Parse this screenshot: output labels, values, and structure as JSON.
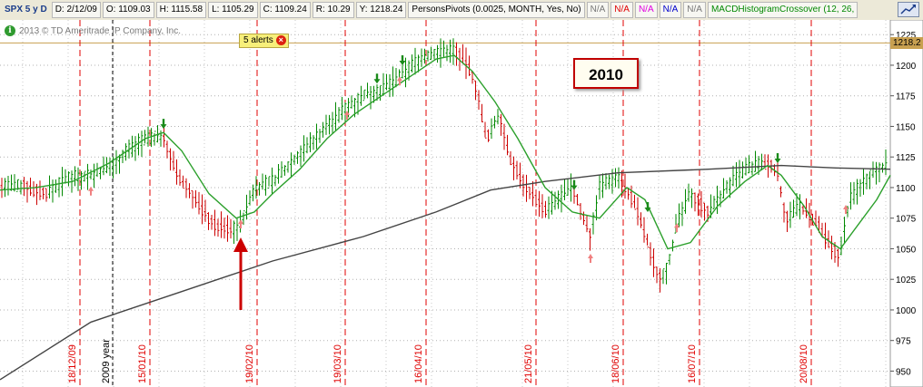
{
  "header": {
    "symbol": "SPX 5 y D",
    "date": "D: 2/12/09",
    "open": "O: 1109.03",
    "high": "H: 1115.58",
    "low": "L: 1105.29",
    "close": "C: 1109.24",
    "range": "R: 10.29",
    "y": "Y: 1218.24",
    "pivots": "PersonsPivots (0.0025, MONTH, Yes, No)",
    "na_labels": [
      "N/A",
      "N/A",
      "N/A",
      "N/A",
      "N/A"
    ],
    "macd": "MACDHistogramCrossover (12, 26,"
  },
  "copyright": "2013 © TD Ameritrade IP Company, Inc.",
  "alert": {
    "label": "5 alerts"
  },
  "year_box": "2010",
  "price_tag": "1218.2",
  "colors": {
    "bull": "#008800",
    "bear": "#cc0000",
    "ma_short": "#2ca02c",
    "ma_long": "#444444",
    "date_lines": "#e00000",
    "pivot": "#c8a050",
    "arrow": "#cc0000"
  },
  "chart_data": {
    "type": "line",
    "y_ticks": [
      950,
      975,
      1000,
      1025,
      1050,
      1075,
      1100,
      1125,
      1150,
      1175,
      1200,
      1225
    ],
    "ylim": [
      937,
      1237
    ],
    "pivot_level": 1218.24,
    "date_labels": [
      "18/12/09",
      "15/01/10",
      "19/02/10",
      "19/03/10",
      "16/04/10",
      "21/05/10",
      "18/06/10",
      "16/07/10",
      "20/08/10"
    ],
    "year_label": "2009 year",
    "close_path": [
      [
        0,
        1100
      ],
      [
        25,
        1102
      ],
      [
        50,
        1095
      ],
      [
        75,
        1108
      ],
      [
        100,
        1110
      ],
      [
        125,
        1118
      ],
      [
        140,
        1130
      ],
      [
        160,
        1140
      ],
      [
        180,
        1142
      ],
      [
        195,
        1110
      ],
      [
        215,
        1090
      ],
      [
        235,
        1070
      ],
      [
        255,
        1065
      ],
      [
        265,
        1070
      ],
      [
        280,
        1100
      ],
      [
        300,
        1105
      ],
      [
        320,
        1120
      ],
      [
        340,
        1135
      ],
      [
        360,
        1150
      ],
      [
        380,
        1165
      ],
      [
        400,
        1175
      ],
      [
        420,
        1180
      ],
      [
        440,
        1190
      ],
      [
        460,
        1205
      ],
      [
        480,
        1210
      ],
      [
        500,
        1212
      ],
      [
        515,
        1200
      ],
      [
        525,
        1180
      ],
      [
        535,
        1140
      ],
      [
        550,
        1160
      ],
      [
        560,
        1125
      ],
      [
        580,
        1100
      ],
      [
        600,
        1080
      ],
      [
        615,
        1090
      ],
      [
        630,
        1100
      ],
      [
        650,
        1060
      ],
      [
        660,
        1100
      ],
      [
        680,
        1110
      ],
      [
        700,
        1085
      ],
      [
        715,
        1050
      ],
      [
        725,
        1025
      ],
      [
        735,
        1035
      ],
      [
        745,
        1070
      ],
      [
        760,
        1095
      ],
      [
        780,
        1080
      ],
      [
        800,
        1100
      ],
      [
        820,
        1115
      ],
      [
        840,
        1120
      ],
      [
        855,
        1115
      ],
      [
        865,
        1075
      ],
      [
        880,
        1085
      ],
      [
        900,
        1070
      ],
      [
        915,
        1050
      ],
      [
        925,
        1045
      ],
      [
        935,
        1090
      ],
      [
        950,
        1105
      ],
      [
        965,
        1115
      ],
      [
        980,
        1120
      ]
    ],
    "ma_short_path": [
      [
        0,
        1098
      ],
      [
        40,
        1100
      ],
      [
        80,
        1105
      ],
      [
        120,
        1120
      ],
      [
        160,
        1140
      ],
      [
        180,
        1145
      ],
      [
        200,
        1130
      ],
      [
        230,
        1095
      ],
      [
        260,
        1075
      ],
      [
        280,
        1080
      ],
      [
        300,
        1095
      ],
      [
        330,
        1115
      ],
      [
        360,
        1140
      ],
      [
        390,
        1160
      ],
      [
        420,
        1175
      ],
      [
        450,
        1190
      ],
      [
        480,
        1205
      ],
      [
        500,
        1208
      ],
      [
        520,
        1195
      ],
      [
        545,
        1170
      ],
      [
        570,
        1140
      ],
      [
        600,
        1100
      ],
      [
        630,
        1080
      ],
      [
        660,
        1075
      ],
      [
        690,
        1100
      ],
      [
        710,
        1090
      ],
      [
        735,
        1050
      ],
      [
        760,
        1055
      ],
      [
        790,
        1085
      ],
      [
        820,
        1105
      ],
      [
        845,
        1118
      ],
      [
        860,
        1110
      ],
      [
        885,
        1085
      ],
      [
        905,
        1060
      ],
      [
        925,
        1050
      ],
      [
        945,
        1070
      ],
      [
        965,
        1090
      ],
      [
        980,
        1110
      ]
    ],
    "ma_long_path": [
      [
        0,
        943
      ],
      [
        100,
        990
      ],
      [
        200,
        1015
      ],
      [
        300,
        1040
      ],
      [
        400,
        1060
      ],
      [
        480,
        1080
      ],
      [
        540,
        1098
      ],
      [
        600,
        1105
      ],
      [
        680,
        1112
      ],
      [
        780,
        1115
      ],
      [
        860,
        1118
      ],
      [
        920,
        1116
      ],
      [
        980,
        1115
      ]
    ],
    "buy_arrows": [
      [
        100,
        1095
      ],
      [
        265,
        1068
      ],
      [
        382,
        1157
      ],
      [
        440,
        1185
      ],
      [
        650,
        1040
      ],
      [
        745,
        1065
      ],
      [
        931,
        1080
      ]
    ],
    "sell_arrows": [
      [
        180,
        1148
      ],
      [
        415,
        1185
      ],
      [
        443,
        1200
      ],
      [
        632,
        1098
      ],
      [
        713,
        1080
      ],
      [
        856,
        1120
      ]
    ]
  }
}
